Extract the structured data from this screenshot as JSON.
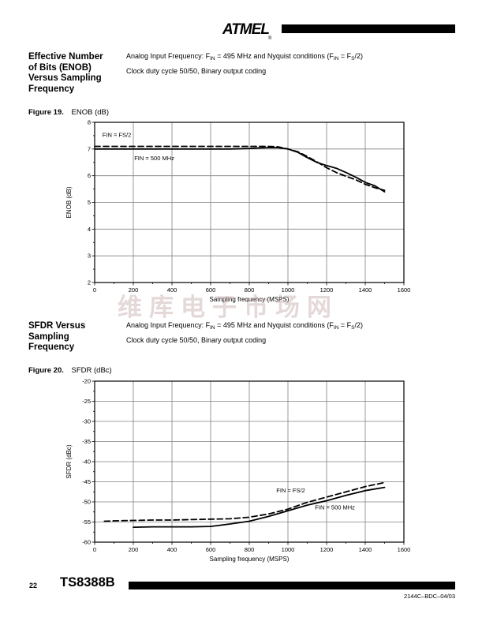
{
  "header": {
    "logo_text": "ATMEL",
    "registered_mark": "®"
  },
  "section1": {
    "heading_lines": [
      "Effective Number",
      "of Bits (ENOB)",
      "Versus Sampling",
      "Frequency"
    ],
    "desc": {
      "p1": "Analog Input Frequency:  F",
      "s1": "IN",
      "p2": " = 495 MHz and Nyquist conditions (F",
      "s2": "IN",
      "p3": " = F",
      "s3": "S",
      "p4": "/2)",
      "line2": "Clock duty cycle 50/50, Binary output coding"
    }
  },
  "figure19": {
    "label": "Figure 19.",
    "title": "ENOB (dB)"
  },
  "section2": {
    "heading_lines": [
      "SFDR Versus",
      "Sampling",
      "Frequency"
    ],
    "desc": {
      "p1": "Analog Input Frequency:  F",
      "s1": "IN",
      "p2": " = 495 MHz and Nyquist conditions (F",
      "s2": "IN",
      "p3": " = F",
      "s3": "S",
      "p4": "/2)",
      "line2": "Clock duty cycle 50/50, Binary output coding"
    }
  },
  "figure20": {
    "label": "Figure 20.",
    "title": "SFDR (dBc)"
  },
  "watermark": "维库电子市场网",
  "footer": {
    "page_number": "22",
    "product": "TS8388B",
    "doc_ref": "2144C–BDC–04/03"
  },
  "colors": {
    "grid": "#808080",
    "line": "#000000",
    "watermark": "rgba(188,158,158,0.40)"
  },
  "chart_data": [
    {
      "id": "fig19",
      "type": "line",
      "title": "ENOB (dB)",
      "xlabel": "Sampling frequency (MSPS)",
      "ylabel": "ENOB (dB)",
      "xlim": [
        0,
        1600
      ],
      "ylim": [
        2,
        8
      ],
      "x_major": 200,
      "x_minor": 100,
      "y_major": 1,
      "y_minor": 0.5,
      "grid": true,
      "legend_position": "inline-annotations",
      "series": [
        {
          "name": "FIN = FS/2",
          "style": "dashed",
          "x": [
            0,
            100,
            200,
            300,
            400,
            500,
            600,
            700,
            800,
            850,
            900,
            950,
            1000,
            1050,
            1100,
            1150,
            1200,
            1250,
            1300,
            1350,
            1400,
            1450,
            1500
          ],
          "y": [
            7.1,
            7.1,
            7.1,
            7.1,
            7.1,
            7.1,
            7.1,
            7.1,
            7.1,
            7.1,
            7.1,
            7.08,
            7.0,
            6.9,
            6.72,
            6.52,
            6.3,
            6.12,
            5.98,
            5.85,
            5.68,
            5.55,
            5.45
          ]
        },
        {
          "name": "FIN = 500 MHz",
          "style": "solid",
          "x": [
            0,
            100,
            200,
            300,
            400,
            500,
            600,
            700,
            800,
            850,
            900,
            950,
            1000,
            1050,
            1100,
            1150,
            1200,
            1250,
            1300,
            1350,
            1400,
            1450,
            1500
          ],
          "y": [
            7.0,
            7.0,
            7.0,
            7.0,
            7.0,
            7.0,
            7.0,
            7.0,
            7.02,
            7.04,
            7.05,
            7.05,
            7.0,
            6.88,
            6.68,
            6.5,
            6.38,
            6.28,
            6.12,
            5.95,
            5.75,
            5.62,
            5.4
          ]
        }
      ],
      "annotations": [
        {
          "text": "FIN = FS/2",
          "x": 40,
          "y": 7.45
        },
        {
          "text": "FIN = 500 MHz",
          "x": 205,
          "y": 6.58
        }
      ]
    },
    {
      "id": "fig20",
      "type": "line",
      "title": "SFDR (dBc)",
      "xlabel": "Sampling frequency (MSPS)",
      "ylabel": "SFDR (dBc)",
      "xlim": [
        0,
        1600
      ],
      "ylim": [
        -60,
        -20
      ],
      "x_major": 200,
      "x_minor": 100,
      "y_major": 5,
      "y_minor": 2.5,
      "grid": true,
      "legend_position": "inline-annotations",
      "series": [
        {
          "name": "FIN = FS/2",
          "style": "dashed",
          "x": [
            50,
            100,
            200,
            300,
            400,
            500,
            600,
            700,
            800,
            900,
            1000,
            1100,
            1200,
            1300,
            1400,
            1500
          ],
          "y": [
            -54.8,
            -54.7,
            -54.6,
            -54.5,
            -54.5,
            -54.4,
            -54.3,
            -54.2,
            -53.8,
            -53.0,
            -51.8,
            -50.1,
            -48.8,
            -47.5,
            -46.2,
            -45.2
          ]
        },
        {
          "name": "FIN = 500 MHz",
          "style": "solid",
          "x": [
            200,
            300,
            400,
            500,
            600,
            700,
            800,
            900,
            1000,
            1100,
            1200,
            1300,
            1400,
            1500
          ],
          "y": [
            -56.3,
            -56.2,
            -56.2,
            -56.2,
            -56.1,
            -55.5,
            -54.8,
            -53.6,
            -52.2,
            -50.8,
            -49.7,
            -48.4,
            -47.2,
            -46.4
          ]
        }
      ],
      "annotations": [
        {
          "text": "FIN = FS/2",
          "x": 940,
          "y": -47.6
        },
        {
          "text": "FIN = 500 MHz",
          "x": 1140,
          "y": -51.9
        }
      ]
    }
  ]
}
